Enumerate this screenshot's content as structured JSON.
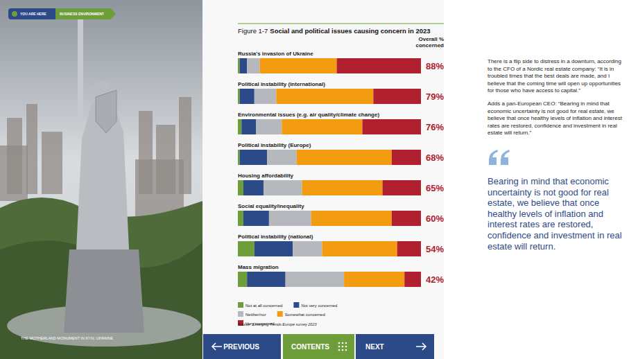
{
  "chart_data": {
    "type": "bar",
    "orientation": "horizontal",
    "stacked": true,
    "figure_label": "Figure 1-7",
    "title": "Social and political issues causing concern in 2023",
    "categories": [
      "Russia's invasion of Ukraine",
      "Political instability (international)",
      "Environmental issues (e.g. air quality/climate change)",
      "Political instability (Europe)",
      "Housing affordability",
      "Social equality/inequality",
      "Political instability (national)",
      "Mass migration"
    ],
    "series": [
      {
        "name": "Not at all concerned",
        "color": "#6e9e3a",
        "values": [
          1,
          1,
          2,
          1,
          3,
          3,
          9,
          5
        ]
      },
      {
        "name": "Not very concerned",
        "color": "#2b4a87",
        "values": [
          4,
          8,
          8,
          15,
          11,
          14,
          21,
          21
        ]
      },
      {
        "name": "Neither/nor",
        "color": "#b5b8bc",
        "values": [
          7,
          12,
          14,
          16,
          21,
          23,
          16,
          32
        ]
      },
      {
        "name": "Somewhat concerned",
        "color": "#f39c12",
        "values": [
          42,
          53,
          44,
          52,
          44,
          44,
          41,
          33
        ]
      },
      {
        "name": "Very concerned",
        "color": "#b0202e",
        "values": [
          46,
          26,
          32,
          16,
          21,
          16,
          13,
          9
        ]
      }
    ],
    "xlim": [
      0,
      100
    ],
    "tick_labels": false,
    "legend": "bottom",
    "totals": {
      "name": "Overall % concerned",
      "values": [
        88,
        79,
        76,
        68,
        65,
        60,
        54,
        42
      ],
      "value_labels": [
        "88%",
        "79%",
        "76%",
        "68%",
        "65%",
        "60%",
        "54%",
        "42%"
      ]
    },
    "source_label": "Source:",
    "source": "Emerging Trends Europe survey 2023"
  },
  "page": {
    "breadcrumb": [
      "YOU ARE HERE",
      "BUSINESS ENVIRONMENT"
    ],
    "photo_caption": "THE MOTHERLAND MONUMENT IN KYIV, UKRAINE",
    "paragraphs": [
      "There is a flip side to distress in a downturn, according to the CFO of a Nordic real estate company: “It is in troubled times that the best deals are made, and I believe that the coming time will open up opportunities for those who have access to capital.”",
      "Adds a pan-European CEO: “Bearing in mind that economic uncertainty is not good for real estate, we believe that once healthy levels of inflation and interest rates are restored, confidence and investment in real estate will return.”"
    ],
    "pull_quote": "Bearing in mind that economic uncertainty is not good for real estate, we believe that once healthy levels of inflation and interest rates are restored, confidence and investment in real estate will return.",
    "nav": [
      "PREVIOUS",
      "CONTENTS",
      "NEXT"
    ]
  }
}
